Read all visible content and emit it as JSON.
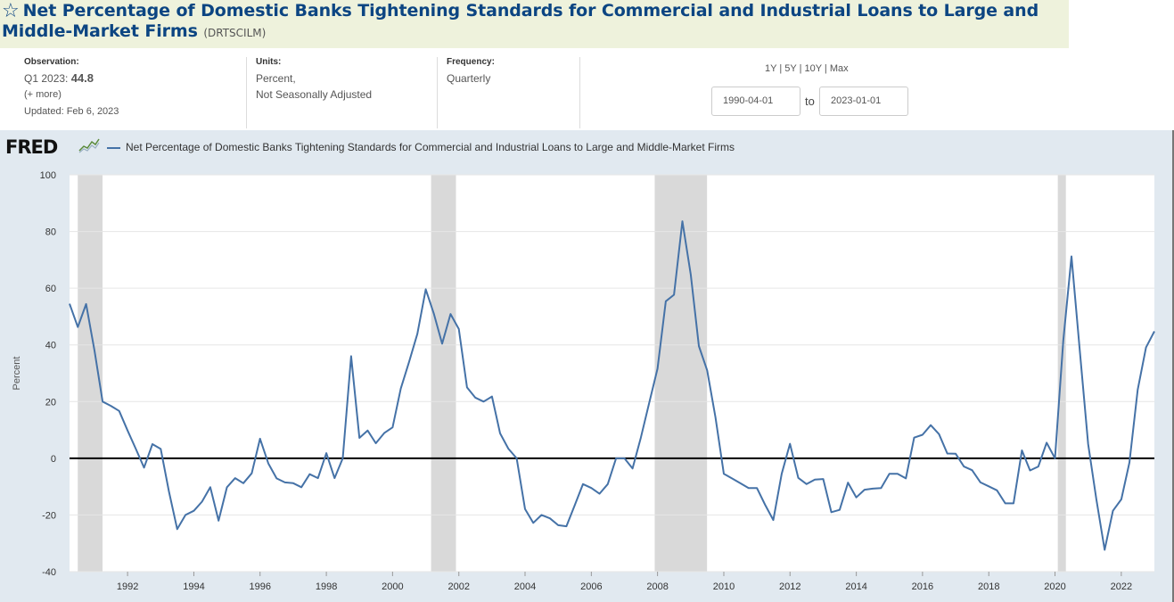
{
  "header": {
    "title": "Net Percentage of Domestic Banks Tightening Standards for Commercial and Industrial Loans to Large and Middle-Market Firms",
    "series_id": "(DRTSCILM)"
  },
  "meta": {
    "observation_label": "Observation:",
    "observation_period": "Q1 2023:",
    "observation_value": "44.8",
    "more_link": "(+ more)",
    "updated": "Updated: Feb 6, 2023",
    "units_label": "Units:",
    "units_line1": "Percent,",
    "units_line2": "Not Seasonally Adjusted",
    "frequency_label": "Frequency:",
    "frequency_value": "Quarterly"
  },
  "range": {
    "links": [
      "1Y",
      "5Y",
      "10Y",
      "Max"
    ],
    "separator": " | ",
    "start": "1990-04-01",
    "to_label": "to",
    "end": "2023-01-01"
  },
  "logo": {
    "text": "FRED"
  },
  "colors": {
    "series": "#4572a7",
    "recession": "#d9d9d9",
    "title": "#0c4582"
  },
  "chart_data": {
    "type": "line",
    "legend": "Net Percentage of Domestic Banks Tightening Standards for Commercial and Industrial Loans to Large and Middle-Market Firms",
    "ylabel": "Percent",
    "xlabel": "",
    "ylim": [
      -40,
      100
    ],
    "xlim": [
      "1990-04-01",
      "2023-01-01"
    ],
    "y_ticks": [
      "100",
      "80",
      "60",
      "40",
      "20",
      "0",
      "-20",
      "-40"
    ],
    "x_ticks": [
      "1992",
      "1994",
      "1996",
      "1998",
      "2000",
      "2002",
      "2004",
      "2006",
      "2008",
      "2010",
      "2012",
      "2014",
      "2016",
      "2018",
      "2020",
      "2022"
    ],
    "recessions": [
      [
        "1990-07-01",
        "1991-03-31"
      ],
      [
        "2001-03-01",
        "2001-11-30"
      ],
      [
        "2007-12-01",
        "2009-06-30"
      ],
      [
        "2020-02-01",
        "2020-04-30"
      ]
    ],
    "series": [
      {
        "name": "DRTSCILM",
        "x": [
          "1990-04-01",
          "1990-07-01",
          "1990-10-01",
          "1991-01-01",
          "1991-04-01",
          "1991-07-01",
          "1991-10-01",
          "1992-01-01",
          "1992-04-01",
          "1992-07-01",
          "1992-10-01",
          "1993-01-01",
          "1993-04-01",
          "1993-07-01",
          "1993-10-01",
          "1994-01-01",
          "1994-04-01",
          "1994-07-01",
          "1994-10-01",
          "1995-01-01",
          "1995-04-01",
          "1995-07-01",
          "1995-10-01",
          "1996-01-01",
          "1996-04-01",
          "1996-07-01",
          "1996-10-01",
          "1997-01-01",
          "1997-04-01",
          "1997-07-01",
          "1997-10-01",
          "1998-01-01",
          "1998-04-01",
          "1998-07-01",
          "1998-10-01",
          "1999-01-01",
          "1999-04-01",
          "1999-07-01",
          "1999-10-01",
          "2000-01-01",
          "2000-04-01",
          "2000-07-01",
          "2000-10-01",
          "2001-01-01",
          "2001-04-01",
          "2001-07-01",
          "2001-10-01",
          "2002-01-01",
          "2002-04-01",
          "2002-07-01",
          "2002-10-01",
          "2003-01-01",
          "2003-04-01",
          "2003-07-01",
          "2003-10-01",
          "2004-01-01",
          "2004-04-01",
          "2004-07-01",
          "2004-10-01",
          "2005-01-01",
          "2005-04-01",
          "2005-07-01",
          "2005-10-01",
          "2006-01-01",
          "2006-04-01",
          "2006-07-01",
          "2006-10-01",
          "2007-01-01",
          "2007-04-01",
          "2007-07-01",
          "2007-10-01",
          "2008-01-01",
          "2008-04-01",
          "2008-07-01",
          "2008-10-01",
          "2009-01-01",
          "2009-04-01",
          "2009-07-01",
          "2009-10-01",
          "2010-01-01",
          "2010-04-01",
          "2010-07-01",
          "2010-10-01",
          "2011-01-01",
          "2011-04-01",
          "2011-07-01",
          "2011-10-01",
          "2012-01-01",
          "2012-04-01",
          "2012-07-01",
          "2012-10-01",
          "2013-01-01",
          "2013-04-01",
          "2013-07-01",
          "2013-10-01",
          "2014-01-01",
          "2014-04-01",
          "2014-07-01",
          "2014-10-01",
          "2015-01-01",
          "2015-04-01",
          "2015-07-01",
          "2015-10-01",
          "2016-01-01",
          "2016-04-01",
          "2016-07-01",
          "2016-10-01",
          "2017-01-01",
          "2017-04-01",
          "2017-07-01",
          "2017-10-01",
          "2018-01-01",
          "2018-04-01",
          "2018-07-01",
          "2018-10-01",
          "2019-01-01",
          "2019-04-01",
          "2019-07-01",
          "2019-10-01",
          "2020-01-01",
          "2020-04-01",
          "2020-07-01",
          "2020-10-01",
          "2021-01-01",
          "2021-04-01",
          "2021-07-01",
          "2021-10-01",
          "2022-01-01",
          "2022-04-01",
          "2022-07-01",
          "2022-10-01",
          "2023-01-01"
        ],
        "values": [
          54.5,
          46.3,
          54.4,
          38.0,
          20.0,
          18.5,
          16.7,
          9.8,
          3.3,
          -3.3,
          5.0,
          3.3,
          -11.7,
          -25.0,
          -20.0,
          -18.5,
          -15.3,
          -10.2,
          -22.0,
          -10.2,
          -7.0,
          -8.8,
          -5.3,
          6.9,
          -1.8,
          -7.1,
          -8.5,
          -8.8,
          -10.2,
          -5.6,
          -7.0,
          1.8,
          -7.0,
          0.0,
          36.0,
          7.2,
          9.8,
          5.3,
          8.9,
          10.9,
          24.6,
          34.0,
          43.9,
          59.6,
          50.9,
          40.4,
          50.9,
          45.6,
          25.0,
          21.4,
          20.0,
          21.8,
          8.8,
          3.4,
          0.0,
          -17.9,
          -22.8,
          -20.0,
          -21.2,
          -23.6,
          -24.0,
          -16.7,
          -9.1,
          -10.5,
          -12.5,
          -9.1,
          0.0,
          0.0,
          -3.6,
          7.3,
          19.6,
          31.6,
          55.4,
          57.7,
          83.6,
          64.8,
          39.6,
          31.0,
          14.5,
          -5.5,
          -7.1,
          -8.8,
          -10.5,
          -10.5,
          -16.4,
          -21.8,
          -5.5,
          5.1,
          -6.9,
          -9.1,
          -7.5,
          -7.3,
          -19.0,
          -18.2,
          -8.6,
          -13.8,
          -11.1,
          -10.7,
          -10.5,
          -5.5,
          -5.5,
          -7.1,
          7.3,
          8.3,
          11.7,
          8.5,
          1.7,
          1.6,
          -2.9,
          -4.2,
          -8.5,
          -9.9,
          -11.3,
          -15.9,
          -15.9,
          2.8,
          -4.3,
          -2.9,
          5.5,
          0.0,
          41.5,
          71.2,
          37.7,
          5.0,
          -14.5,
          -32.3,
          -18.5,
          -14.5,
          -1.5,
          24.2,
          39.1,
          44.8
        ]
      }
    ]
  }
}
